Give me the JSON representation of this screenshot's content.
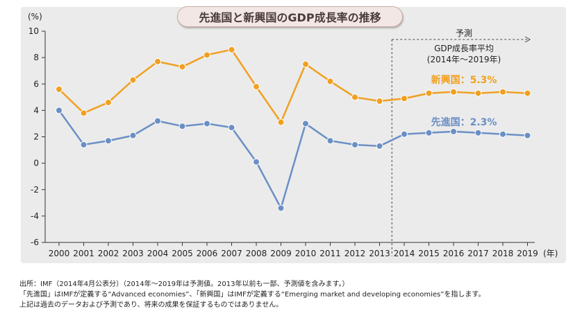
{
  "chart_data": {
    "type": "line",
    "title": "先進国と新興国のGDP成長率の推移",
    "ylabel": "(%)",
    "xlabel": "(年)",
    "ylim": [
      -6,
      10
    ],
    "yticks": [
      10,
      8,
      6,
      4,
      2,
      0,
      -2,
      -4,
      -6
    ],
    "grid": false,
    "x": [
      "2000",
      "2001",
      "2002",
      "2003",
      "2004",
      "2005",
      "2006",
      "2007",
      "2008",
      "2009",
      "2010",
      "2011",
      "2012",
      "2013",
      "2014",
      "2015",
      "2016",
      "2017",
      "2018",
      "2019"
    ],
    "series": [
      {
        "name": "新興国",
        "color": "#f0a020",
        "values": [
          5.6,
          3.8,
          4.6,
          6.3,
          7.7,
          7.3,
          8.2,
          8.6,
          5.8,
          3.1,
          7.5,
          6.2,
          5.0,
          4.7,
          4.9,
          5.3,
          5.4,
          5.3,
          5.4,
          5.3
        ],
        "annotation": "新興国：5.3%"
      },
      {
        "name": "先進国",
        "color": "#6a8fc5",
        "values": [
          4.0,
          1.4,
          1.7,
          2.1,
          3.2,
          2.8,
          3.0,
          2.7,
          0.1,
          -3.4,
          3.0,
          1.7,
          1.4,
          1.3,
          2.2,
          2.3,
          2.4,
          2.3,
          2.2,
          2.1
        ],
        "annotation": "先進国：2.3%"
      }
    ],
    "forecast": {
      "label": "予測",
      "avg_label_line1": "GDP成長率平均",
      "avg_label_line2": "(2014年～2019年)",
      "start_year": "2014",
      "end_year": "2019"
    }
  },
  "notes": [
    "出所：IMF（2014年4月公表分）（2014年～2019年は予測値。2013年以前も一部、予測値を含みます。）",
    "「先進国」はIMFが定義する“Advanced economies”、「新興国」はIMFが定義する“Emerging market and developing economies”を指します。",
    "上記は過去のデータおよび予測であり、将来の成果を保証するものではありません。"
  ]
}
